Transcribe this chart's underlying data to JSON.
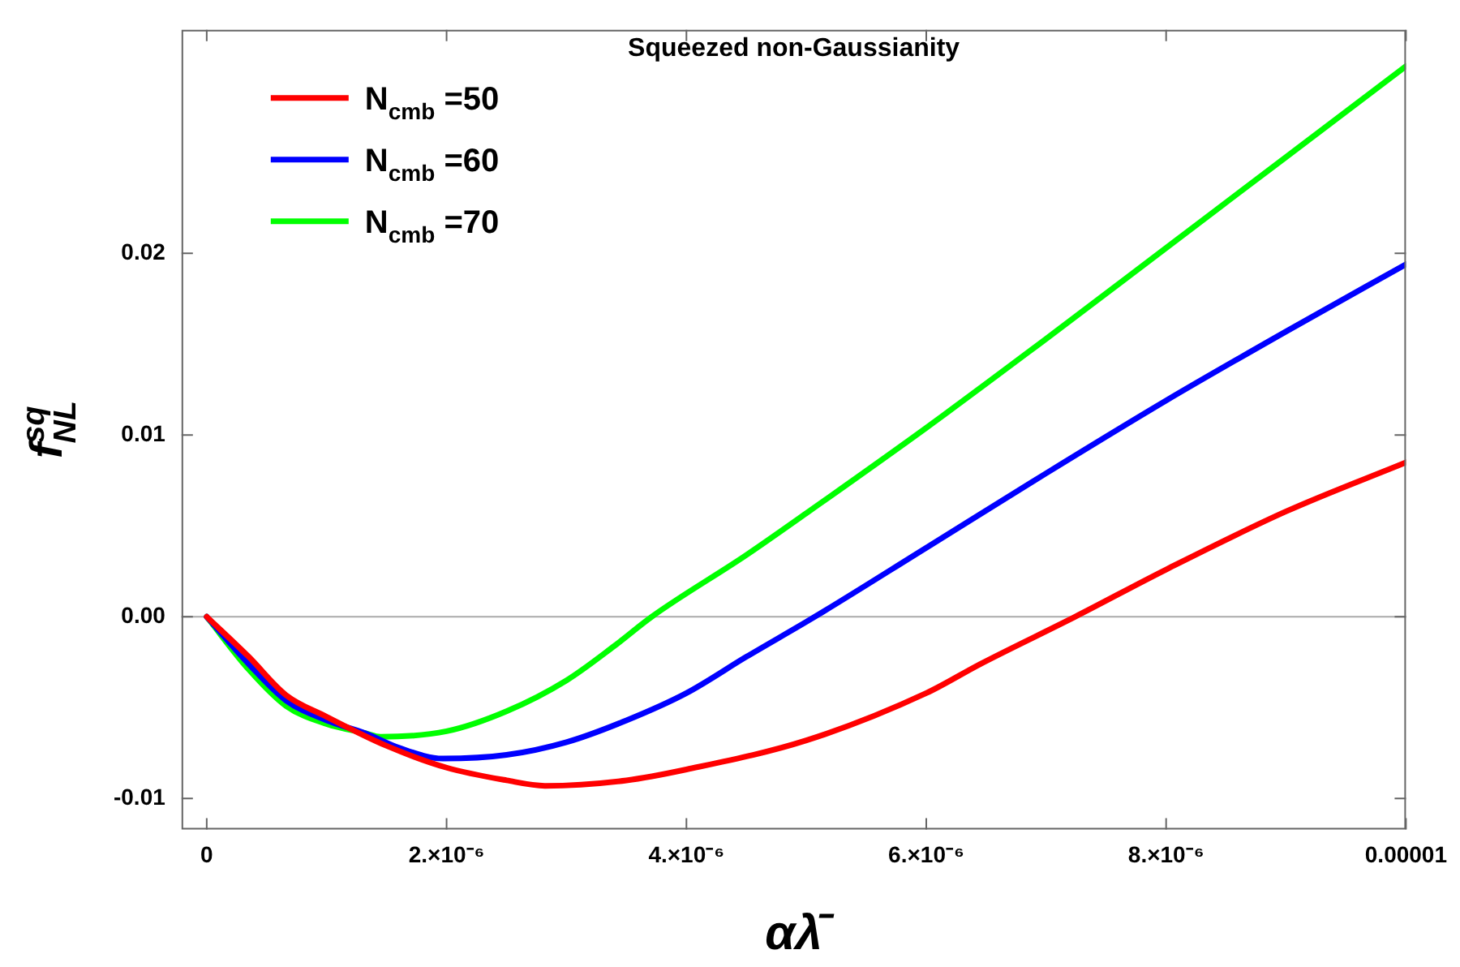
{
  "chart_data": {
    "type": "line",
    "title": "Squeezed non-Gaussianity",
    "xlabel": "αλ̄",
    "ylabel": "f$^{sq}$$_{NL}$",
    "xlim": [
      -2.1e-07,
      1e-05
    ],
    "ylim": [
      -0.0117,
      0.0323
    ],
    "xticks": [
      0,
      {
        "value": 2e-06,
        "label": "2.×10⁻⁶"
      },
      {
        "value": 4e-06,
        "label": "4.×10⁻⁶"
      },
      {
        "value": 6e-06,
        "label": "6.×10⁻⁶"
      },
      {
        "value": 8e-06,
        "label": "8.×10⁻⁶"
      },
      {
        "value": 1e-05,
        "label": "0.00001"
      }
    ],
    "yticks": [
      -0.01,
      {
        "value": 0,
        "label": "0.00"
      },
      0.01,
      0.02
    ],
    "ref_lines": [
      {
        "axis": "y",
        "value": 0,
        "color": "#aaaaaa"
      }
    ],
    "legend": "top left",
    "grid": false,
    "marker": "none",
    "line_style": "solid",
    "series": [
      {
        "name": "N$_{cmb}$ =50",
        "color": "#ff0000",
        "x": [
          0,
          3.5e-07,
          6.6e-07,
          1e-06,
          1.5e-06,
          2e-06,
          2.5e-06,
          2.82e-06,
          3.5e-06,
          4e-06,
          5e-06,
          6e-06,
          6.45e-06,
          7.24e-06,
          8e-06,
          9e-06,
          1e-05
        ],
        "values": [
          0,
          -0.0022,
          -0.0043,
          -0.0055,
          -0.0071,
          -0.0083,
          -0.009,
          -0.0093,
          -0.009,
          -0.0084,
          -0.0068,
          -0.0042,
          -0.0026,
          0,
          0.0026,
          0.0058,
          0.0085
        ]
      },
      {
        "name": "N$_{cmb}$ =60",
        "color": "#0000ff",
        "x": [
          0,
          3.5e-07,
          6.6e-07,
          1e-06,
          1.32e-06,
          1.6e-06,
          1.97e-06,
          2.5e-06,
          3e-06,
          3.5e-06,
          4e-06,
          4.5e-06,
          5.07e-06,
          6e-06,
          7e-06,
          8e-06,
          9e-06,
          1e-05
        ],
        "values": [
          0,
          -0.0026,
          -0.0046,
          -0.0057,
          -0.0064,
          -0.0072,
          -0.0078,
          -0.0076,
          -0.0069,
          -0.0057,
          -0.0042,
          -0.0022,
          0,
          0.0038,
          0.0079,
          0.0119,
          0.0157,
          0.0194
        ]
      },
      {
        "name": "N$_{cmb}$ =70",
        "color": "#00ff00",
        "x": [
          0,
          3.5e-07,
          6.6e-07,
          1e-06,
          1.32e-06,
          1.45e-06,
          2e-06,
          2.5e-06,
          3e-06,
          3.4e-06,
          3.71e-06,
          4.5e-06,
          5e-06,
          6e-06,
          7e-06,
          8e-06,
          9e-06,
          1e-05
        ],
        "values": [
          0,
          -0.0029,
          -0.0049,
          -0.0059,
          -0.0064,
          -0.0066,
          -0.0063,
          -0.0052,
          -0.0035,
          -0.0016,
          0,
          0.0034,
          0.0057,
          0.0104,
          0.0153,
          0.0203,
          0.0253,
          0.0303
        ]
      }
    ]
  }
}
